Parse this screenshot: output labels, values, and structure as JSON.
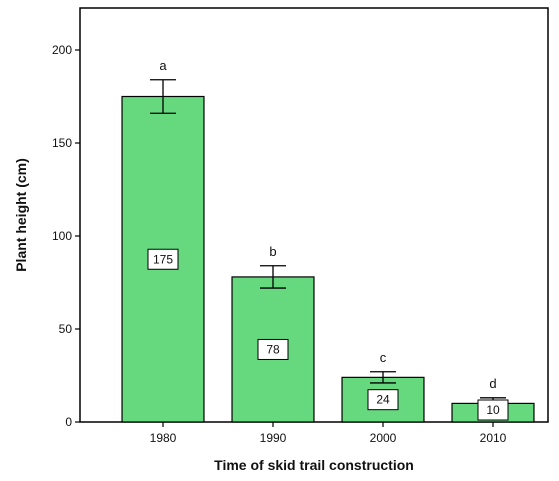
{
  "chart_data": {
    "type": "bar",
    "title": "",
    "xlabel": "Time of skid trail construction",
    "ylabel": "Plant height (cm)",
    "categories": [
      "1980",
      "1990",
      "2000",
      "2010"
    ],
    "values": [
      175,
      78,
      24,
      10
    ],
    "error_low": [
      166,
      72,
      21,
      7
    ],
    "error_high": [
      184,
      84,
      27,
      13
    ],
    "significance_letters": [
      "a",
      "b",
      "c",
      "d"
    ],
    "data_labels": [
      "175",
      "78",
      "24",
      "10"
    ],
    "ylim": [
      0,
      200
    ],
    "yticks": [
      0,
      50,
      100,
      150,
      200
    ],
    "ytick_labels": [
      "0",
      "50",
      "100",
      "150",
      "200"
    ],
    "bar_color": "#66d97f",
    "grid": false,
    "legend": "none"
  }
}
